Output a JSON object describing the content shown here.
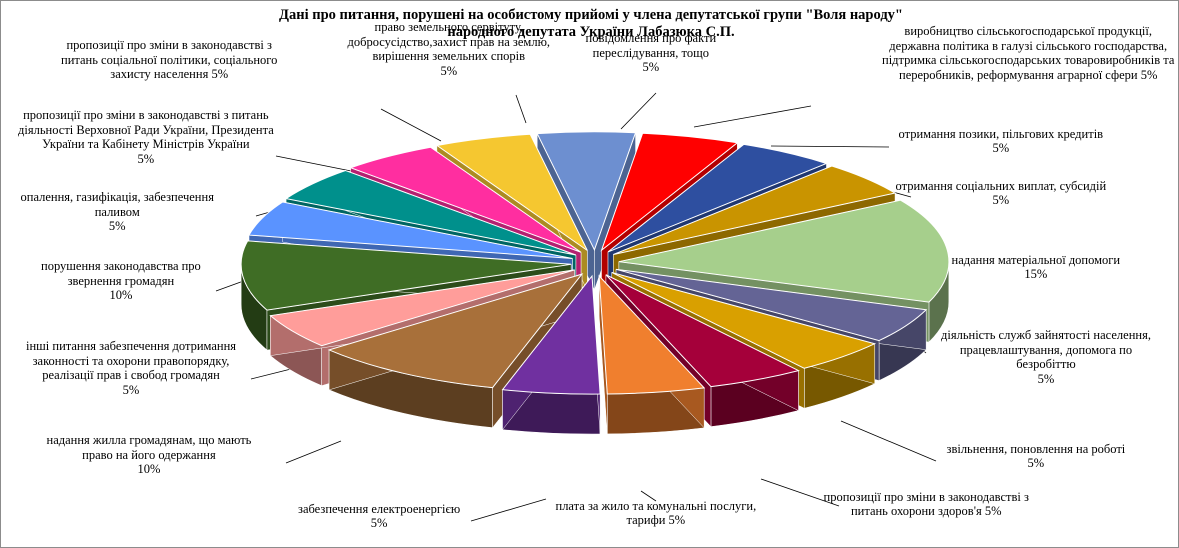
{
  "chart_data": {
    "type": "pie",
    "title_lines": [
      "Дані про питання, порушені на особистому прийомі у члена депутатської групи \"Воля народу\"",
      "народного депутата України Лабазюка С.П."
    ],
    "slices": [
      {
        "label": [
          "повідомлення про факти",
          "переслідування, тощо",
          "5%"
        ],
        "value": 5,
        "color": "#6d8fd0"
      },
      {
        "label": [
          "виробництво сільськогосподарської продукції,",
          "державна політика в галузі сільського господарства,",
          "підтримка сільськогосподарських товаровиробників та",
          "переробників, реформування аграрної сфери 5%"
        ],
        "value": 5,
        "color": "#ff0000"
      },
      {
        "label": [
          "отримання позики, пільгових кредитів",
          "5%"
        ],
        "value": 5,
        "color": "#2e4fa0"
      },
      {
        "label": [
          "отримання соціальних виплат, субсидій",
          "5%"
        ],
        "value": 5,
        "color": "#c99400"
      },
      {
        "label": [
          "надання матеріальної допомоги",
          "15%"
        ],
        "value": 15,
        "color": "#a6cf8c"
      },
      {
        "label": [
          "діяльність служб зайнятості населення,",
          "працевлаштування, допомога по",
          "безробіттю",
          "5%"
        ],
        "value": 5,
        "color": "#646495"
      },
      {
        "label": [
          "звільнення, поновлення на роботі",
          "5%"
        ],
        "value": 5,
        "color": "#d9a000"
      },
      {
        "label": [
          "пропозиції про зміни в законодавстві з",
          "питань охорони здоров'я 5%"
        ],
        "value": 5,
        "color": "#a5003a"
      },
      {
        "label": [
          "плата за жило та комунальні послуги,",
          "тарифи 5%"
        ],
        "value": 5,
        "color": "#f07f2e"
      },
      {
        "label": [
          "забезпечення електроенергією",
          "5%"
        ],
        "value": 5,
        "color": "#7030a0"
      },
      {
        "label": [
          "надання жилла громадянам, що мають",
          "право на його одержання",
          "10%"
        ],
        "value": 10,
        "color": "#a8703a"
      },
      {
        "label": [
          "інші питання забезпечення дотримання",
          "законності та охорони правопорядку,",
          "реалізації прав і свобод громадян",
          "5%"
        ],
        "value": 5,
        "color": "#ff9d9a"
      },
      {
        "label": [
          "порушення законодавства про",
          "звернення громадян",
          "10%"
        ],
        "value": 10,
        "color": "#3f6d25"
      },
      {
        "label": [
          "опалення, газифікація, забезпечення",
          "паливом",
          "5%"
        ],
        "value": 5,
        "color": "#5a93ff"
      },
      {
        "label": [
          "пропозиції про зміни в законодавстві з питань",
          "діяльності Верховної Ради України, Президента",
          "України та Кабінету Міністрів України",
          "5%"
        ],
        "value": 5,
        "color": "#00908c"
      },
      {
        "label": [
          "пропозиції про зміни в законодавстві з",
          "питань соціальної політики, соціального",
          "захисту населення 5%"
        ],
        "value": 5,
        "color": "#ff2ea0"
      },
      {
        "label": [
          "право земельного сервітуту,",
          "добросусідство,захист прав на землю,",
          "вирішення земельних спорів",
          "5%"
        ],
        "value": 5,
        "color": "#f5c730"
      }
    ]
  }
}
